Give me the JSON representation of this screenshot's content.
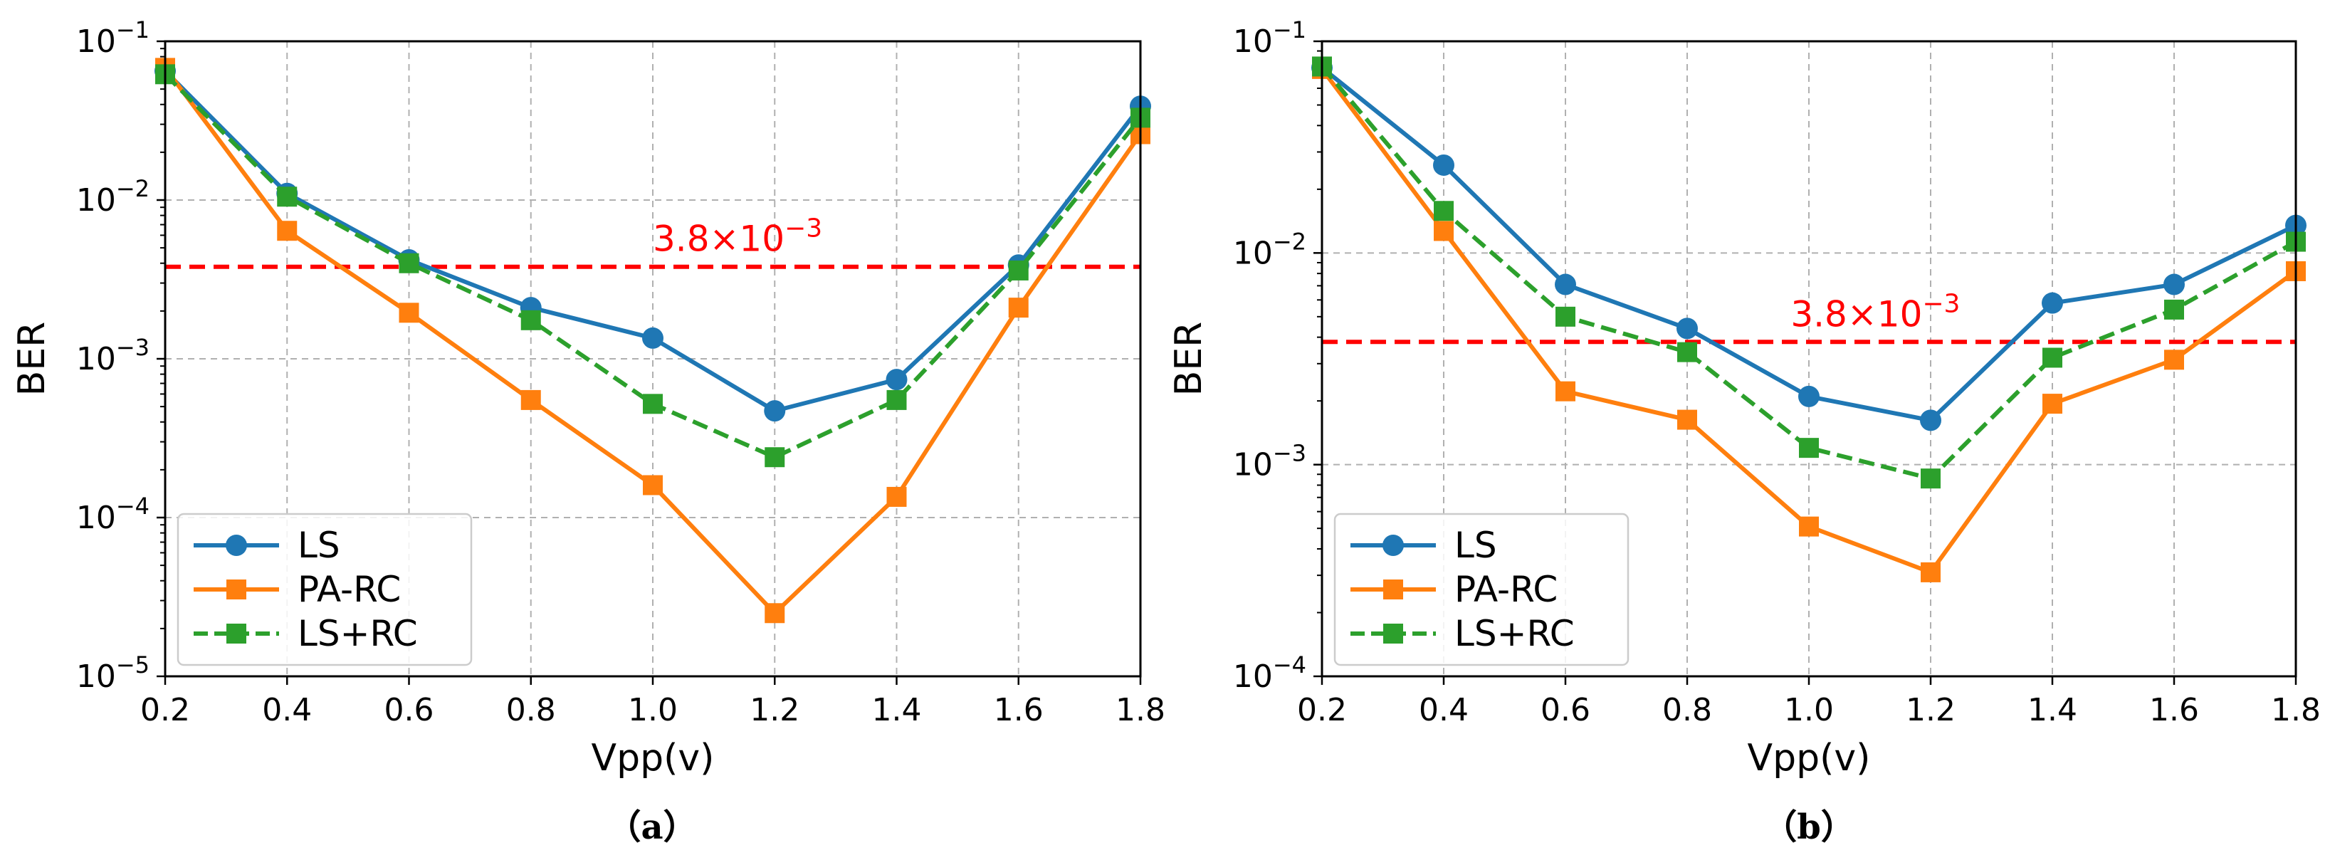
{
  "chart_data": [
    {
      "type": "line",
      "panel_label": "（a）",
      "xlabel": "Vpp(v)",
      "ylabel": "BER",
      "yscale": "log",
      "xlim": [
        0.2,
        1.8
      ],
      "ylim": [
        1e-05,
        0.1
      ],
      "x": [
        0.2,
        0.4,
        0.6,
        0.8,
        1.0,
        1.2,
        1.4,
        1.6,
        1.8
      ],
      "x_tick_labels": [
        "0.2",
        "0.4",
        "0.6",
        "0.8",
        "1.0",
        "1.2",
        "1.4",
        "1.6",
        "1.8"
      ],
      "y_ticks": [
        {
          "value": 1e-05,
          "base": "10",
          "exp": "−5"
        },
        {
          "value": 0.0001,
          "base": "10",
          "exp": "−4"
        },
        {
          "value": 0.001,
          "base": "10",
          "exp": "−3"
        },
        {
          "value": 0.01,
          "base": "10",
          "exp": "−2"
        },
        {
          "value": 0.1,
          "base": "10",
          "exp": "−1"
        }
      ],
      "grid": true,
      "legend_position": "lower-left",
      "threshold": {
        "value": 0.0038,
        "label_base": "3.8×10",
        "label_exp": "−3",
        "color": "#ff0000",
        "label_x": 1.0
      },
      "series": [
        {
          "name": "LS",
          "color": "#1f77b4",
          "marker": "circle",
          "dash": "solid",
          "values": [
            0.065,
            0.011,
            0.0042,
            0.0021,
            0.00135,
            0.00047,
            0.00074,
            0.0039,
            0.039
          ]
        },
        {
          "name": "PA-RC",
          "color": "#ff7f0e",
          "marker": "square",
          "dash": "solid",
          "values": [
            0.068,
            0.0064,
            0.00195,
            0.00055,
            0.00016,
            2.5e-05,
            0.000135,
            0.0021,
            0.026
          ]
        },
        {
          "name": "LS+RC",
          "color": "#2ca02c",
          "marker": "square",
          "dash": "dashed",
          "values": [
            0.062,
            0.0105,
            0.004,
            0.00175,
            0.00052,
            0.00024,
            0.00055,
            0.0036,
            0.033
          ]
        }
      ]
    },
    {
      "type": "line",
      "panel_label": "（b）",
      "xlabel": "Vpp(v)",
      "ylabel": "BER",
      "yscale": "log",
      "xlim": [
        0.2,
        1.8
      ],
      "ylim": [
        0.0001,
        0.1
      ],
      "x": [
        0.2,
        0.4,
        0.6,
        0.8,
        1.0,
        1.2,
        1.4,
        1.6,
        1.8
      ],
      "x_tick_labels": [
        "0.2",
        "0.4",
        "0.6",
        "0.8",
        "1.0",
        "1.2",
        "1.4",
        "1.6",
        "1.8"
      ],
      "y_ticks": [
        {
          "value": 0.0001,
          "base": "10",
          "exp": "−4"
        },
        {
          "value": 0.001,
          "base": "10",
          "exp": "−3"
        },
        {
          "value": 0.01,
          "base": "10",
          "exp": "−2"
        },
        {
          "value": 0.1,
          "base": "10",
          "exp": "−1"
        }
      ],
      "grid": true,
      "legend_position": "lower-left",
      "threshold": {
        "value": 0.0038,
        "label_base": "3.8×10",
        "label_exp": "−3",
        "color": "#ff0000",
        "label_x": 0.97
      },
      "series": [
        {
          "name": "LS",
          "color": "#1f77b4",
          "marker": "circle",
          "dash": "solid",
          "values": [
            0.075,
            0.026,
            0.0071,
            0.0044,
            0.0021,
            0.00162,
            0.0058,
            0.0071,
            0.0135
          ]
        },
        {
          "name": "PA-RC",
          "color": "#ff7f0e",
          "marker": "square",
          "dash": "solid",
          "values": [
            0.074,
            0.0127,
            0.00222,
            0.00163,
            0.00051,
            0.00031,
            0.00194,
            0.00313,
            0.0082
          ]
        },
        {
          "name": "LS+RC",
          "color": "#2ca02c",
          "marker": "square",
          "dash": "dashed",
          "values": [
            0.076,
            0.0158,
            0.005,
            0.0034,
            0.0012,
            0.00086,
            0.0032,
            0.0054,
            0.0113
          ]
        }
      ]
    }
  ]
}
